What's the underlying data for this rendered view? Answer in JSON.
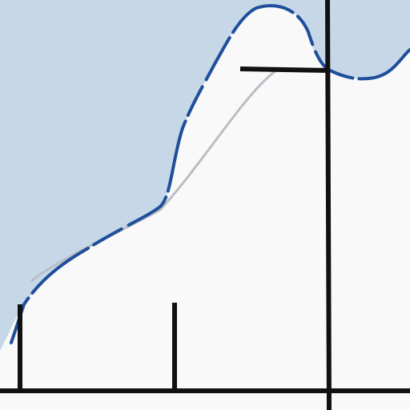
{
  "diagram": {
    "colors": {
      "sky": "#c6d8e8",
      "ground": "#f9f9fa",
      "outer_curve": "#1f4f9a",
      "inner_curve": "#b9bdc4",
      "ink": "#111111"
    },
    "elements": [
      "shaded-region-above-curve",
      "outer-blue-curve",
      "inner-grey-curve",
      "horizontal-baseline",
      "vertical-axis-line",
      "left-vertical-tick",
      "middle-vertical-tick",
      "top-horizontal-marker"
    ]
  }
}
